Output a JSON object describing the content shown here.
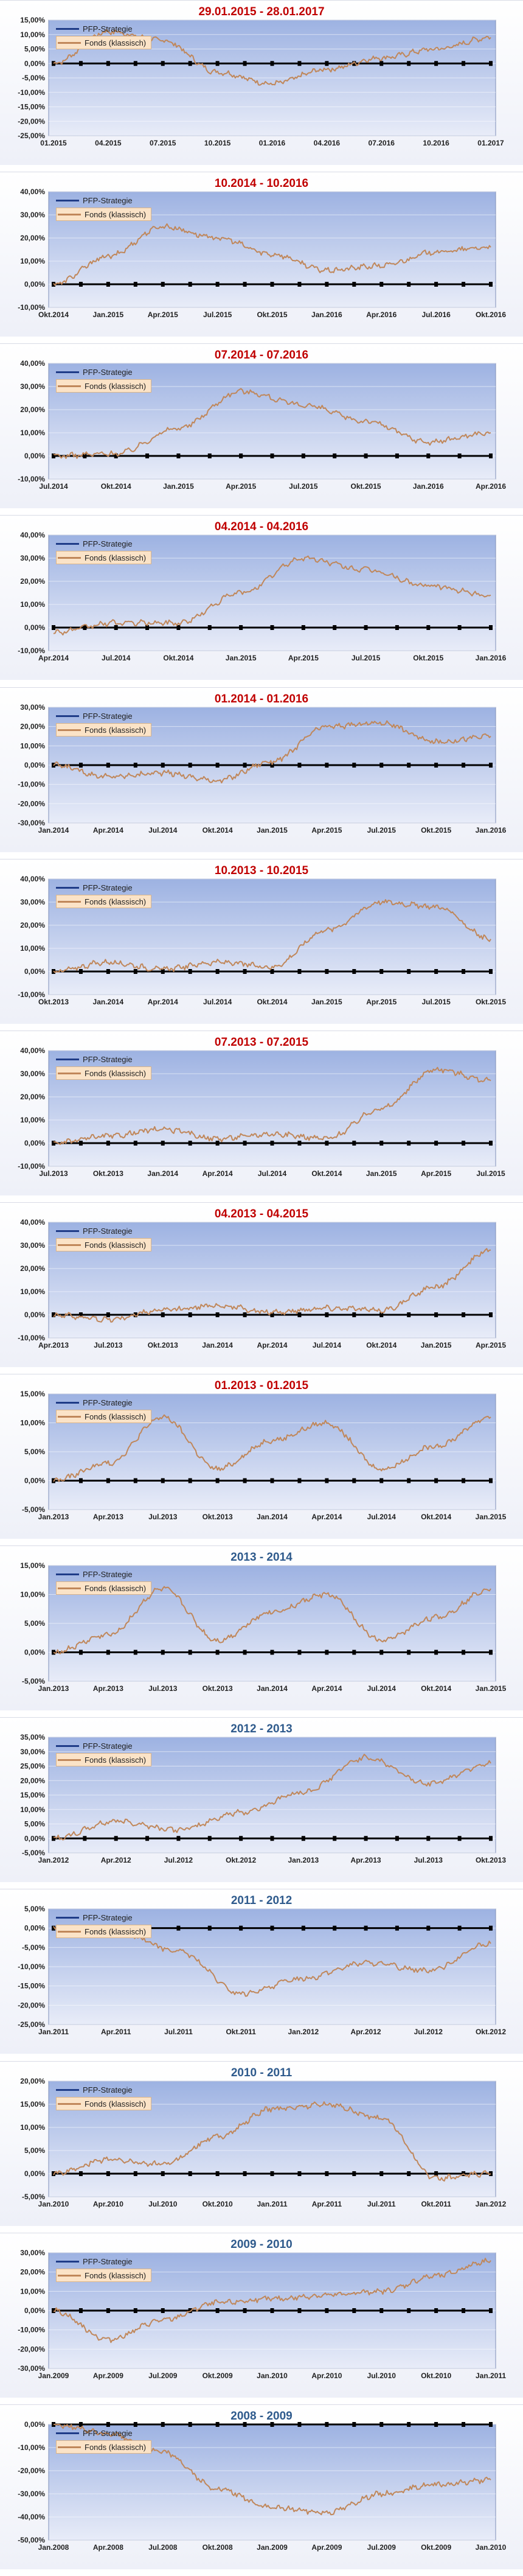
{
  "legend": {
    "pfp_label": "PFP-Strategie",
    "fonds_label": "Fonds (klassisch)",
    "pfp_color": "#1f3c88",
    "fonds_color": "#c0875a"
  },
  "colors": {
    "title_red": "#c00000",
    "title_blue": "#2e5a8c",
    "plot_top": "#9db2e2",
    "plot_bottom": "#e8ecf8",
    "axis": "#000000"
  },
  "chart_data": [
    {
      "type": "line",
      "title": "29.01.2015 - 28.01.2017",
      "title_color": "red",
      "y_ticks": [
        "15,00%",
        "10,00%",
        "5,00%",
        "0,00%",
        "-5,00%",
        "-10,00%",
        "-15,00%",
        "-20,00%",
        "-25,00%"
      ],
      "ylim": [
        -25,
        15
      ],
      "x_ticks": [
        "01.2015",
        "04.2015",
        "07.2015",
        "10.2015",
        "01.2016",
        "04.2016",
        "07.2016",
        "10.2016",
        "01.2017"
      ],
      "series": [
        {
          "name": "PFP-Strategie",
          "values": [
            0,
            0,
            0,
            0,
            0,
            0,
            0,
            0,
            0
          ]
        },
        {
          "name": "Fonds (klassisch)",
          "values": [
            0,
            11,
            8,
            -3,
            -7,
            -2,
            2,
            5,
            9
          ]
        }
      ]
    },
    {
      "type": "line",
      "title": "10.2014 - 10.2016",
      "title_color": "red",
      "y_ticks": [
        "40,00%",
        "30,00%",
        "20,00%",
        "10,00%",
        "0,00%",
        "-10,00%"
      ],
      "ylim": [
        -10,
        40
      ],
      "x_ticks": [
        "Okt.2014",
        "Jan.2015",
        "Apr.2015",
        "Jul.2015",
        "Okt.2015",
        "Jan.2016",
        "Apr.2016",
        "Jul.2016",
        "Okt.2016"
      ],
      "series": [
        {
          "name": "PFP-Strategie",
          "values": [
            0,
            0,
            0,
            0,
            0,
            0,
            0,
            0,
            0
          ]
        },
        {
          "name": "Fonds (klassisch)",
          "values": [
            0,
            12,
            25,
            20,
            13,
            6,
            8,
            14,
            16
          ]
        }
      ]
    },
    {
      "type": "line",
      "title": "07.2014 - 07.2016",
      "title_color": "red",
      "y_ticks": [
        "40,00%",
        "30,00%",
        "20,00%",
        "10,00%",
        "0,00%",
        "-10,00%"
      ],
      "ylim": [
        -10,
        40
      ],
      "x_ticks": [
        "Jul.2014",
        "Okt.2014",
        "Jan.2015",
        "Apr.2015",
        "Jul.2015",
        "Okt.2015",
        "Jan.2016",
        "Apr.2016"
      ],
      "series": [
        {
          "name": "PFP-Strategie",
          "values": [
            0,
            0,
            0,
            0,
            0,
            0,
            0,
            0
          ]
        },
        {
          "name": "Fonds (klassisch)",
          "values": [
            0,
            1,
            12,
            28,
            22,
            15,
            6,
            10
          ]
        }
      ]
    },
    {
      "type": "line",
      "title": "04.2014 - 04.2016",
      "title_color": "red",
      "y_ticks": [
        "40,00%",
        "30,00%",
        "20,00%",
        "10,00%",
        "0,00%",
        "-10,00%"
      ],
      "ylim": [
        -10,
        40
      ],
      "x_ticks": [
        "Apr.2014",
        "Jul.2014",
        "Okt.2014",
        "Jan.2015",
        "Apr.2015",
        "Jul.2015",
        "Okt.2015",
        "Jan.2016"
      ],
      "series": [
        {
          "name": "PFP-Strategie",
          "values": [
            0,
            0,
            0,
            0,
            0,
            0,
            0,
            0
          ]
        },
        {
          "name": "Fonds (klassisch)",
          "values": [
            -2,
            2,
            2,
            15,
            30,
            25,
            18,
            14
          ]
        }
      ]
    },
    {
      "type": "line",
      "title": "01.2014 - 01.2016",
      "title_color": "red",
      "y_ticks": [
        "30,00%",
        "20,00%",
        "10,00%",
        "0,00%",
        "-10,00%",
        "-20,00%",
        "-30,00%"
      ],
      "ylim": [
        -30,
        30
      ],
      "x_ticks": [
        "Jan.2014",
        "Apr.2014",
        "Jul.2014",
        "Okt.2014",
        "Jan.2015",
        "Apr.2015",
        "Jul.2015",
        "Okt.2015",
        "Jan.2016"
      ],
      "series": [
        {
          "name": "PFP-Strategie",
          "values": [
            0,
            0,
            0,
            0,
            0,
            0,
            0,
            0,
            0
          ]
        },
        {
          "name": "Fonds (klassisch)",
          "values": [
            0,
            -6,
            -4,
            -8,
            2,
            20,
            22,
            12,
            15
          ]
        }
      ]
    },
    {
      "type": "line",
      "title": "10.2013 - 10.2015",
      "title_color": "red",
      "y_ticks": [
        "40,00%",
        "30,00%",
        "20,00%",
        "10,00%",
        "0,00%",
        "-10,00%"
      ],
      "ylim": [
        -10,
        40
      ],
      "x_ticks": [
        "Okt.2013",
        "Jan.2014",
        "Apr.2014",
        "Jul.2014",
        "Okt.2014",
        "Jan.2015",
        "Apr.2015",
        "Jul.2015",
        "Okt.2015"
      ],
      "series": [
        {
          "name": "PFP-Strategie",
          "values": [
            0,
            0,
            0,
            0,
            0,
            0,
            0,
            0,
            0
          ]
        },
        {
          "name": "Fonds (klassisch)",
          "values": [
            0,
            4,
            1,
            4,
            2,
            18,
            30,
            28,
            14
          ]
        }
      ]
    },
    {
      "type": "line",
      "title": "07.2013 - 07.2015",
      "title_color": "red",
      "y_ticks": [
        "40,00%",
        "30,00%",
        "20,00%",
        "10,00%",
        "0,00%",
        "-10,00%"
      ],
      "ylim": [
        -10,
        40
      ],
      "x_ticks": [
        "Jul.2013",
        "Okt.2013",
        "Jan.2014",
        "Apr.2014",
        "Jul.2014",
        "Okt.2014",
        "Jan.2015",
        "Apr.2015",
        "Jul.2015"
      ],
      "series": [
        {
          "name": "PFP-Strategie",
          "values": [
            0,
            0,
            0,
            0,
            0,
            0,
            0,
            0,
            0
          ]
        },
        {
          "name": "Fonds (klassisch)",
          "values": [
            0,
            3,
            6,
            2,
            4,
            2,
            15,
            32,
            27
          ]
        }
      ]
    },
    {
      "type": "line",
      "title": "04.2013 - 04.2015",
      "title_color": "red",
      "y_ticks": [
        "40,00%",
        "30,00%",
        "20,00%",
        "10,00%",
        "0,00%",
        "-10,00%"
      ],
      "ylim": [
        -10,
        40
      ],
      "x_ticks": [
        "Apr.2013",
        "Jul.2013",
        "Okt.2013",
        "Jan.2014",
        "Apr.2014",
        "Jul.2014",
        "Okt.2014",
        "Jan.2015",
        "Apr.2015"
      ],
      "series": [
        {
          "name": "PFP-Strategie",
          "values": [
            0,
            0,
            0,
            0,
            0,
            0,
            0,
            0,
            0
          ]
        },
        {
          "name": "Fonds (klassisch)",
          "values": [
            0,
            -2,
            2,
            4,
            1,
            3,
            2,
            12,
            28
          ]
        }
      ]
    },
    {
      "type": "line",
      "title": "01.2013 - 01.2015",
      "title_color": "red",
      "y_ticks": [
        "15,00%",
        "10,00%",
        "5,00%",
        "0,00%",
        "-5,00%"
      ],
      "ylim": [
        -5,
        15
      ],
      "x_ticks": [
        "Jan.2013",
        "Apr.2013",
        "Jul.2013",
        "Okt.2013",
        "Jan.2014",
        "Apr.2014",
        "Jul.2014",
        "Okt.2014",
        "Jan.2015"
      ],
      "series": [
        {
          "name": "PFP-Strategie",
          "values": [
            0,
            0,
            0,
            0,
            0,
            0,
            0,
            0,
            0
          ]
        },
        {
          "name": "Fonds (klassisch)",
          "values": [
            0,
            3,
            11,
            2,
            7,
            10,
            2,
            6,
            11
          ]
        }
      ]
    },
    {
      "type": "line",
      "title": "2013 - 2014",
      "title_color": "blue",
      "y_ticks": [
        "15,00%",
        "10,00%",
        "5,00%",
        "0,00%",
        "-5,00%"
      ],
      "ylim": [
        -5,
        15
      ],
      "x_ticks": [
        "Jan.2013",
        "Apr.2013",
        "Jul.2013",
        "Okt.2013",
        "Jan.2014",
        "Apr.2014",
        "Jul.2014",
        "Okt.2014",
        "Jan.2015"
      ],
      "series": [
        {
          "name": "PFP-Strategie",
          "values": [
            0,
            0,
            0,
            0,
            0,
            0,
            0,
            0,
            0
          ]
        },
        {
          "name": "Fonds (klassisch)",
          "values": [
            0,
            3,
            11,
            2,
            7,
            10,
            2,
            6,
            11
          ]
        }
      ]
    },
    {
      "type": "line",
      "title": "2012 - 2013",
      "title_color": "blue",
      "y_ticks": [
        "35,00%",
        "30,00%",
        "25,00%",
        "20,00%",
        "15,00%",
        "10,00%",
        "5,00%",
        "0,00%",
        "-5,00%"
      ],
      "ylim": [
        -5,
        35
      ],
      "x_ticks": [
        "Jan.2012",
        "Apr.2012",
        "Jul.2012",
        "Okt.2012",
        "Jan.2013",
        "Apr.2013",
        "Jul.2013",
        "Okt.2013"
      ],
      "series": [
        {
          "name": "PFP-Strategie",
          "values": [
            0,
            0,
            0,
            0,
            0,
            0,
            0,
            0
          ]
        },
        {
          "name": "Fonds (klassisch)",
          "values": [
            0,
            6,
            3,
            9,
            16,
            28,
            19,
            26
          ]
        }
      ]
    },
    {
      "type": "line",
      "title": "2011 - 2012",
      "title_color": "blue",
      "y_ticks": [
        "5,00%",
        "0,00%",
        "-5,00%",
        "-10,00%",
        "-15,00%",
        "-20,00%",
        "-25,00%"
      ],
      "ylim": [
        -25,
        5
      ],
      "x_ticks": [
        "Jan.2011",
        "Apr.2011",
        "Jul.2011",
        "Okt.2011",
        "Jan.2012",
        "Apr.2012",
        "Jul.2012",
        "Okt.2012"
      ],
      "series": [
        {
          "name": "PFP-Strategie",
          "values": [
            0,
            0,
            0,
            0,
            0,
            0,
            0,
            0
          ]
        },
        {
          "name": "Fonds (klassisch)",
          "values": [
            0,
            -1,
            -6,
            -17,
            -13,
            -9,
            -11,
            -4
          ]
        }
      ]
    },
    {
      "type": "line",
      "title": "2010 - 2011",
      "title_color": "blue",
      "y_ticks": [
        "20,00%",
        "15,00%",
        "10,00%",
        "5,00%",
        "0,00%",
        "-5,00%"
      ],
      "ylim": [
        -5,
        20
      ],
      "x_ticks": [
        "Jan.2010",
        "Apr.2010",
        "Jul.2010",
        "Okt.2010",
        "Jan.2011",
        "Apr.2011",
        "Jul.2011",
        "Okt.2011",
        "Jan.2012"
      ],
      "series": [
        {
          "name": "PFP-Strategie",
          "values": [
            0,
            0,
            0,
            0,
            0,
            0,
            0,
            0,
            0
          ]
        },
        {
          "name": "Fonds (klassisch)",
          "values": [
            0,
            3,
            2,
            8,
            14,
            15,
            12,
            -1,
            0
          ]
        }
      ]
    },
    {
      "type": "line",
      "title": "2009 - 2010",
      "title_color": "blue",
      "y_ticks": [
        "30,00%",
        "20,00%",
        "10,00%",
        "0,00%",
        "-10,00%",
        "-20,00%",
        "-30,00%"
      ],
      "ylim": [
        -30,
        30
      ],
      "x_ticks": [
        "Jan.2009",
        "Apr.2009",
        "Jul.2009",
        "Okt.2009",
        "Jan.2010",
        "Apr.2010",
        "Jul.2010",
        "Okt.2010",
        "Jan.2011"
      ],
      "series": [
        {
          "name": "PFP-Strategie",
          "values": [
            0,
            0,
            0,
            0,
            0,
            0,
            0,
            0,
            0
          ]
        },
        {
          "name": "Fonds (klassisch)",
          "values": [
            0,
            -15,
            -5,
            4,
            6,
            8,
            10,
            18,
            26
          ]
        }
      ]
    },
    {
      "type": "line",
      "title": "2008 - 2009",
      "title_color": "blue",
      "y_ticks": [
        "0,00%",
        "-10,00%",
        "-20,00%",
        "-30,00%",
        "-40,00%",
        "-50,00%"
      ],
      "ylim": [
        -50,
        0
      ],
      "x_ticks": [
        "Jan.2008",
        "Apr.2008",
        "Jul.2008",
        "Okt.2008",
        "Jan.2009",
        "Apr.2009",
        "Jul.2009",
        "Okt.2009",
        "Jan.2010"
      ],
      "series": [
        {
          "name": "PFP-Strategie",
          "values": [
            0,
            0,
            0,
            0,
            0,
            0,
            0,
            0,
            0
          ]
        },
        {
          "name": "Fonds (klassisch)",
          "values": [
            0,
            -4,
            -12,
            -28,
            -36,
            -38,
            -30,
            -26,
            -24
          ]
        }
      ]
    }
  ]
}
